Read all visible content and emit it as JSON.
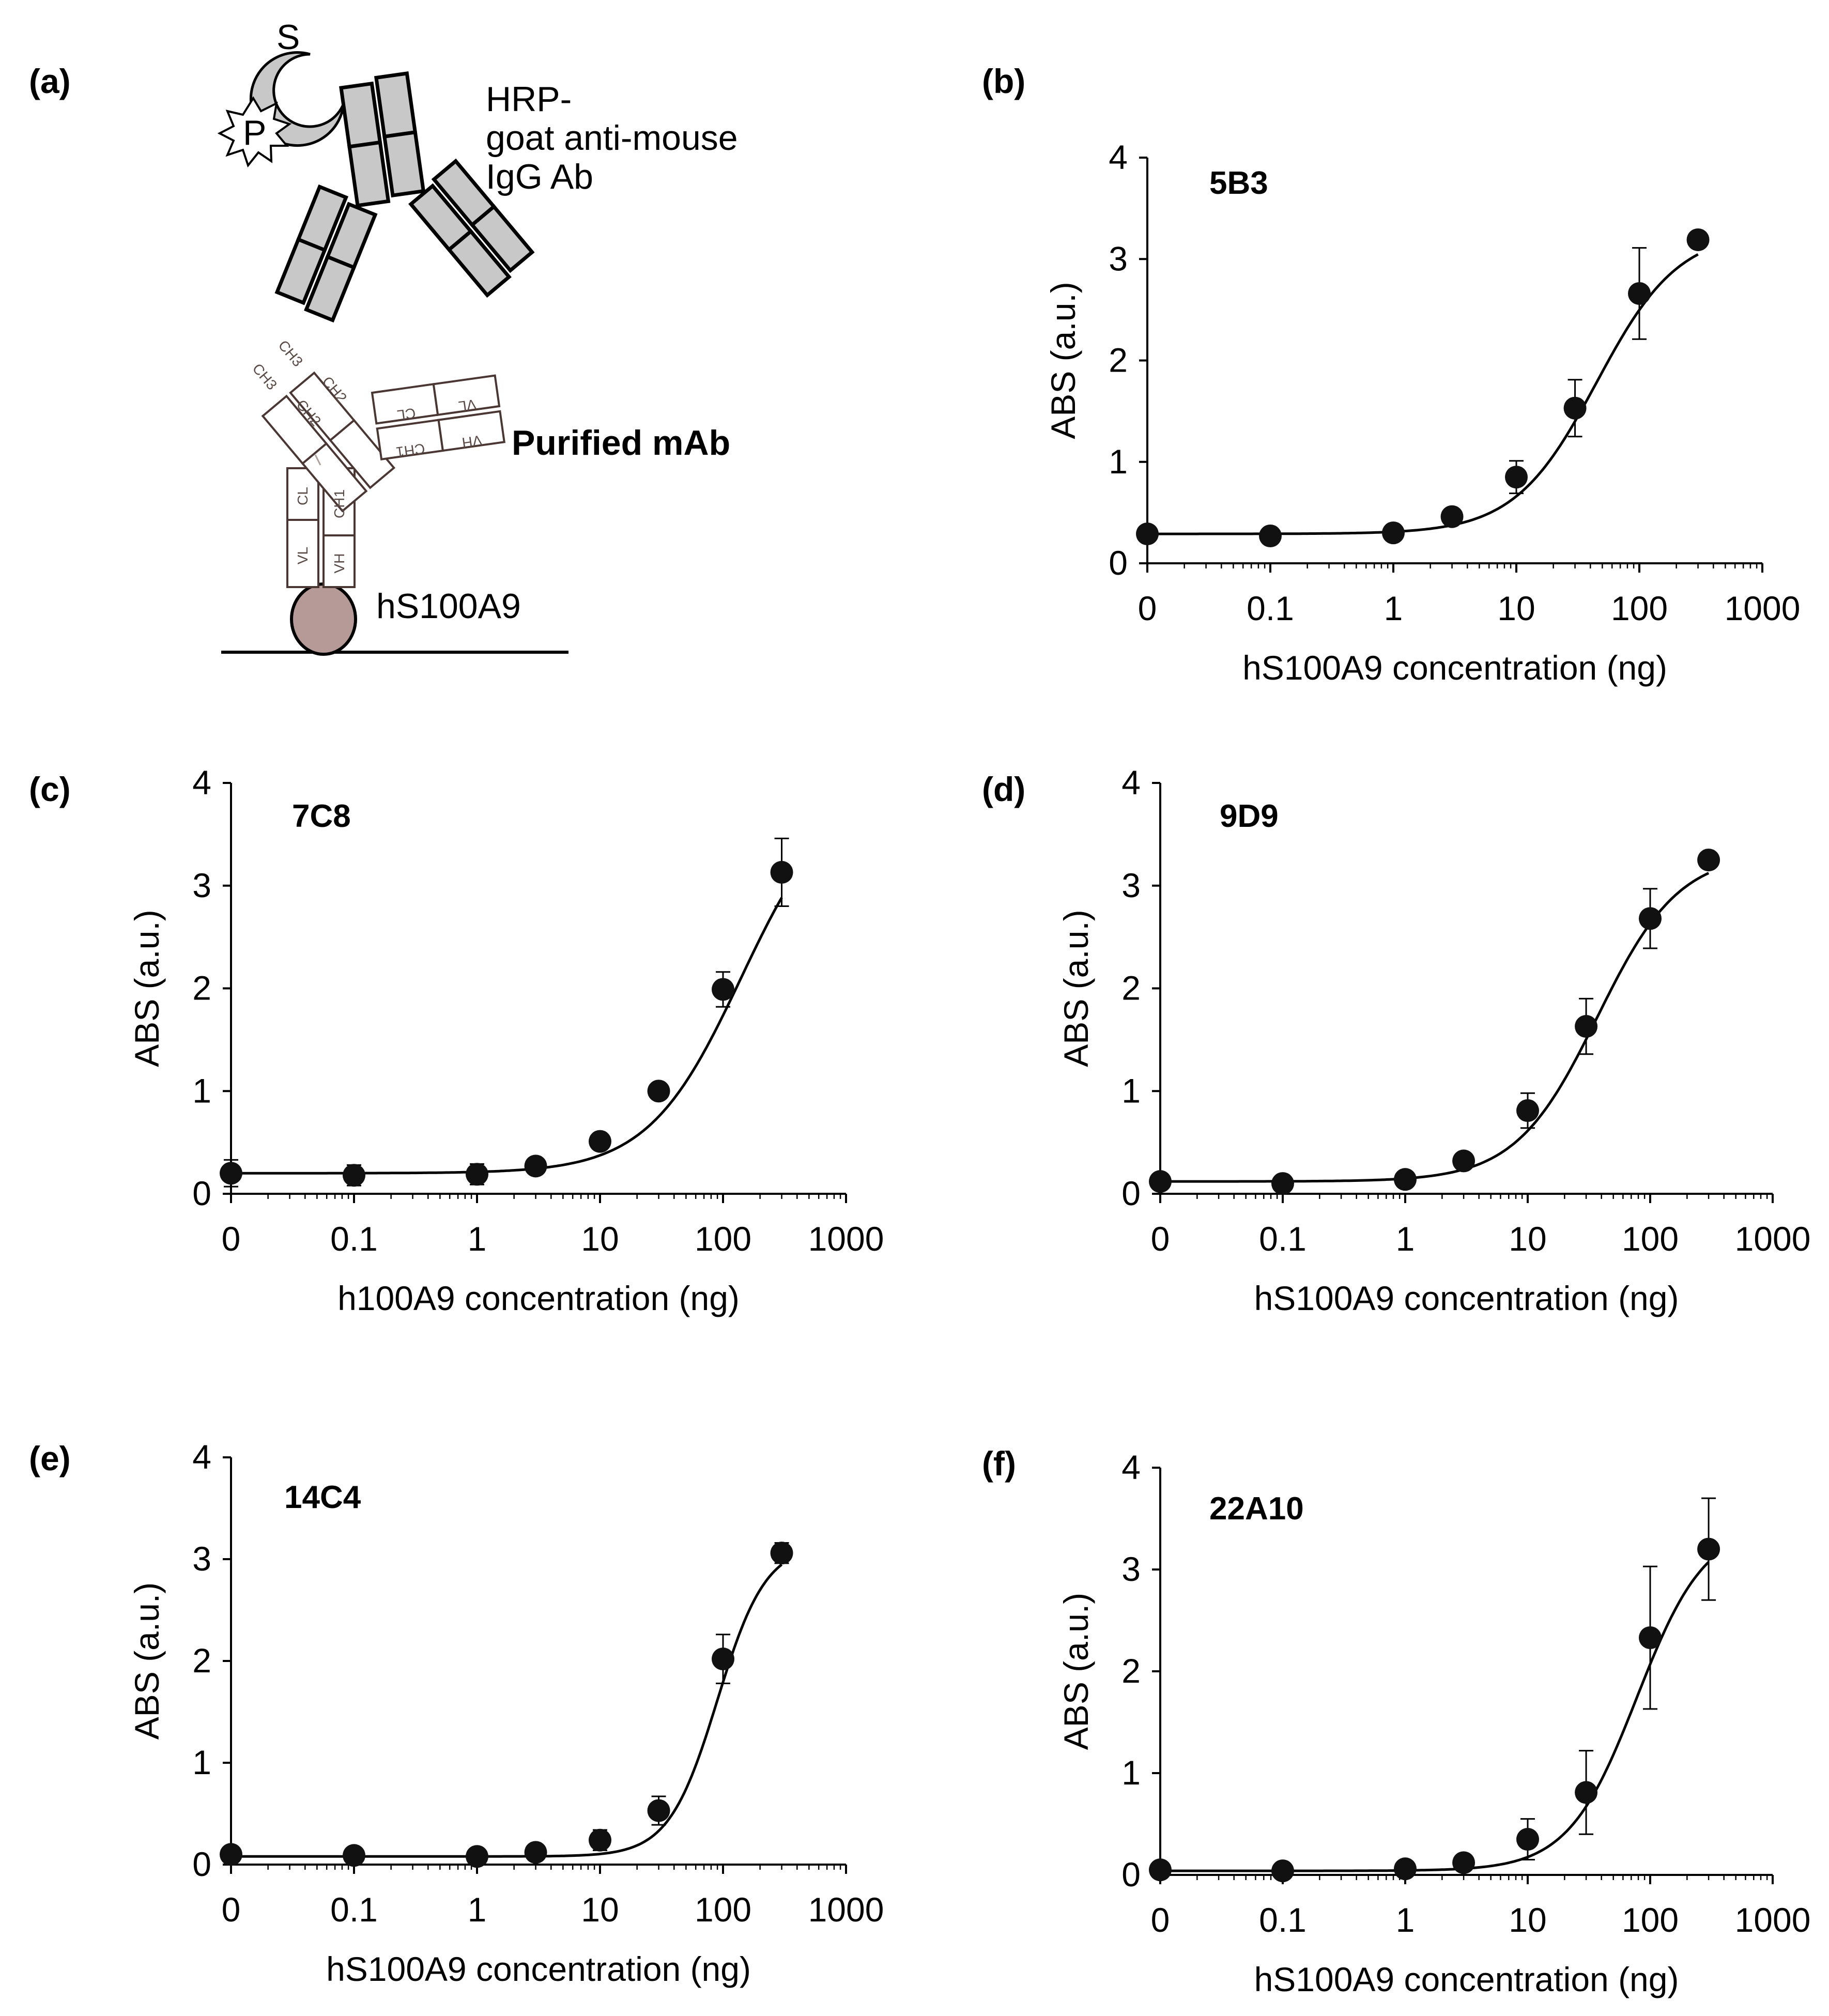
{
  "panel_a": {
    "label": "(a)",
    "substrate_label": "S",
    "hrp_label": "P",
    "secondary_ab_label": [
      "HRP-",
      "goat anti-mouse",
      "IgG Ab"
    ],
    "primary_ab_label": "Purified mAb",
    "antigen_label": "hS100A9",
    "domains": {
      "heavy_lower": [
        "VH",
        "CH1",
        "CH2",
        "CH3"
      ],
      "light_lower": [
        "VL",
        "CL"
      ],
      "heavy_upper": [
        "VH",
        "CH1"
      ],
      "light_upper": [
        "VL",
        "CL"
      ]
    },
    "colors": {
      "secondary_ab": "#c8c8c8",
      "antigen": "#b59a97",
      "primary_ab_stroke": "#4a3632"
    }
  },
  "chart_data": [
    {
      "panel_label": "(b)",
      "type": "scatter",
      "title": "5B3",
      "xlabel": "hS100A9 concentration (ng)",
      "ylabel": "ABS (a.u.)",
      "xscale": "log",
      "xticks": [
        "0",
        "0.1",
        "1",
        "10",
        "100",
        "1000"
      ],
      "yticks": [
        "0",
        "1",
        "2",
        "3",
        "4"
      ],
      "ylim": [
        0,
        4
      ],
      "x": [
        0.01,
        0.1,
        1,
        3,
        10,
        30,
        100,
        300
      ],
      "y": [
        0.29,
        0.27,
        0.3,
        0.46,
        0.85,
        1.53,
        2.66,
        3.19
      ],
      "err": [
        0,
        0,
        0,
        0,
        0.16,
        0.28,
        0.45,
        0
      ],
      "fit": {
        "bottom": 0.29,
        "top": 3.28,
        "ec50": 45,
        "hill": 1.3
      },
      "grid": false
    },
    {
      "panel_label": "(c)",
      "type": "scatter",
      "title": "7C8",
      "xlabel": "h100A9 concentration (ng)",
      "ylabel": "ABS (a.u.)",
      "xscale": "log",
      "xticks": [
        "0",
        "0.1",
        "1",
        "10",
        "100",
        "1000"
      ],
      "yticks": [
        "0",
        "1",
        "2",
        "3",
        "4"
      ],
      "ylim": [
        0,
        4
      ],
      "x": [
        0.01,
        0.1,
        1,
        3,
        10,
        30,
        100,
        300
      ],
      "y": [
        0.2,
        0.18,
        0.19,
        0.27,
        0.51,
        1.0,
        1.99,
        3.13
      ],
      "err": [
        0.13,
        0.1,
        0.1,
        0.07,
        0.05,
        0.05,
        0.17,
        0.33
      ],
      "fit": {
        "bottom": 0.2,
        "top": 4.0,
        "ec50": 140,
        "hill": 1.15
      },
      "grid": false
    },
    {
      "panel_label": "(d)",
      "type": "scatter",
      "title": "9D9",
      "xlabel": "hS100A9 concentration (ng)",
      "ylabel": "ABS (a.u.)",
      "xscale": "log",
      "xticks": [
        "0",
        "0.1",
        "1",
        "10",
        "100",
        "1000"
      ],
      "yticks": [
        "0",
        "1",
        "2",
        "3",
        "4"
      ],
      "ylim": [
        0,
        4
      ],
      "x": [
        0.01,
        0.1,
        1,
        3,
        10,
        30,
        100,
        300
      ],
      "y": [
        0.12,
        0.1,
        0.14,
        0.32,
        0.81,
        1.63,
        2.68,
        3.25
      ],
      "err": [
        0.05,
        0.03,
        0.03,
        0.04,
        0.17,
        0.27,
        0.29,
        0
      ],
      "fit": {
        "bottom": 0.12,
        "top": 3.32,
        "ec50": 37,
        "hill": 1.3
      },
      "grid": false
    },
    {
      "panel_label": "(e)",
      "type": "scatter",
      "title": "14C4",
      "xlabel": "hS100A9 concentration (ng)",
      "ylabel": "ABS (a.u.)",
      "xscale": "log",
      "xticks": [
        "0",
        "0.1",
        "1",
        "10",
        "100",
        "1000"
      ],
      "yticks": [
        "0",
        "1",
        "2",
        "3",
        "4"
      ],
      "ylim": [
        0,
        4
      ],
      "x": [
        0.01,
        0.1,
        1,
        3,
        10,
        30,
        100,
        300
      ],
      "y": [
        0.1,
        0.09,
        0.08,
        0.12,
        0.24,
        0.53,
        2.02,
        3.06
      ],
      "err": [
        0.04,
        0.03,
        0.03,
        0.04,
        0.1,
        0.14,
        0.24,
        0.1
      ],
      "fit": {
        "bottom": 0.08,
        "top": 3.15,
        "ec50": 90,
        "hill": 2.2
      },
      "grid": false
    },
    {
      "panel_label": "(f)",
      "type": "scatter",
      "title": "22A10",
      "xlabel": "hS100A9 concentration (ng)",
      "ylabel": "ABS (a.u.)",
      "xscale": "log",
      "xticks": [
        "0",
        "0.1",
        "1",
        "10",
        "100",
        "1000"
      ],
      "yticks": [
        "0",
        "1",
        "2",
        "3",
        "4"
      ],
      "ylim": [
        0,
        4
      ],
      "x": [
        0.01,
        0.1,
        1,
        3,
        10,
        30,
        100,
        300
      ],
      "y": [
        0.05,
        0.04,
        0.06,
        0.12,
        0.35,
        0.81,
        2.33,
        3.2
      ],
      "err": [
        0,
        0,
        0.02,
        0.03,
        0.2,
        0.41,
        0.7,
        0.5
      ],
      "fit": {
        "bottom": 0.04,
        "top": 3.45,
        "ec50": 78,
        "hill": 1.55
      },
      "grid": false
    }
  ]
}
